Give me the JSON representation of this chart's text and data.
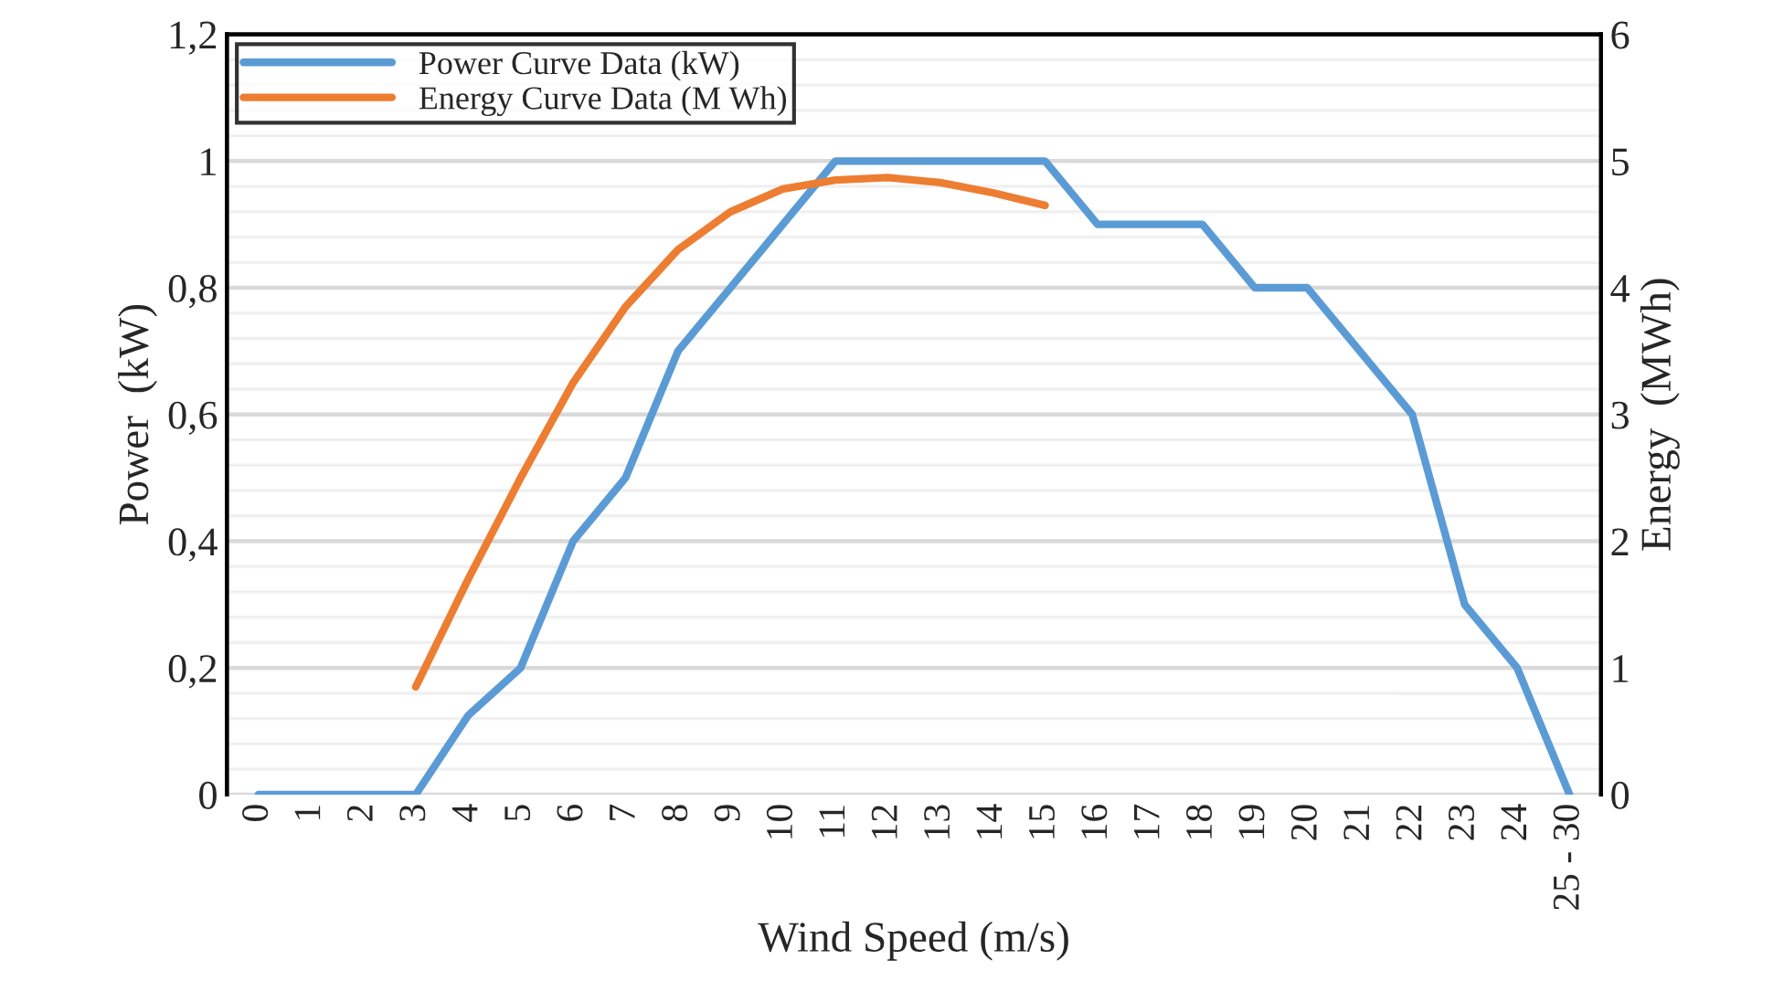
{
  "chart_data": {
    "type": "line",
    "xlabel": "Wind Speed (m/s)",
    "ylabel": "Power  (kW)",
    "y2label": "Energy  (MWh)",
    "categories": [
      "0",
      "1",
      "2",
      "3",
      "4",
      "5",
      "6",
      "7",
      "8",
      "9",
      "10",
      "11",
      "12",
      "13",
      "14",
      "15",
      "16",
      "17",
      "18",
      "19",
      "20",
      "21",
      "22",
      "23",
      "24",
      "25 - 30"
    ],
    "series": [
      {
        "name": "Power Curve Data (kW)",
        "color": "#5b9bd5",
        "values": [
          0,
          0,
          0,
          0,
          0.125,
          0.2,
          0.4,
          0.5,
          0.7,
          0.8,
          0.9,
          1,
          1,
          1,
          1,
          1,
          0.9,
          0.9,
          0.9,
          0.8,
          0.8,
          0.7,
          0.6,
          0.3,
          0.2,
          0
        ]
      },
      {
        "name": "Energy Curve Data (M Wh)",
        "color": "#ed7d31",
        "axis": "y2",
        "values": [
          null,
          null,
          null,
          0.85,
          1.7,
          2.5,
          3.25,
          3.85,
          4.3,
          4.6,
          4.78,
          4.85,
          4.87,
          4.83,
          4.75,
          4.65,
          null,
          null,
          null,
          null,
          null,
          null,
          null,
          null,
          null,
          null
        ]
      }
    ],
    "ylim": [
      0,
      1.2
    ],
    "yticks": [
      0,
      {
        "value": 0.2,
        "label": "0,2"
      },
      {
        "value": 0.4,
        "label": "0,4"
      },
      {
        "value": 0.6,
        "label": "0,6"
      },
      {
        "value": 0.8,
        "label": "0,8"
      },
      1,
      {
        "value": 1.2,
        "label": "1,2"
      }
    ],
    "y2lim": [
      0,
      6
    ],
    "y2ticks": [
      0,
      1,
      2,
      3,
      4,
      5,
      6
    ],
    "grid": "y",
    "legend": "top left"
  }
}
